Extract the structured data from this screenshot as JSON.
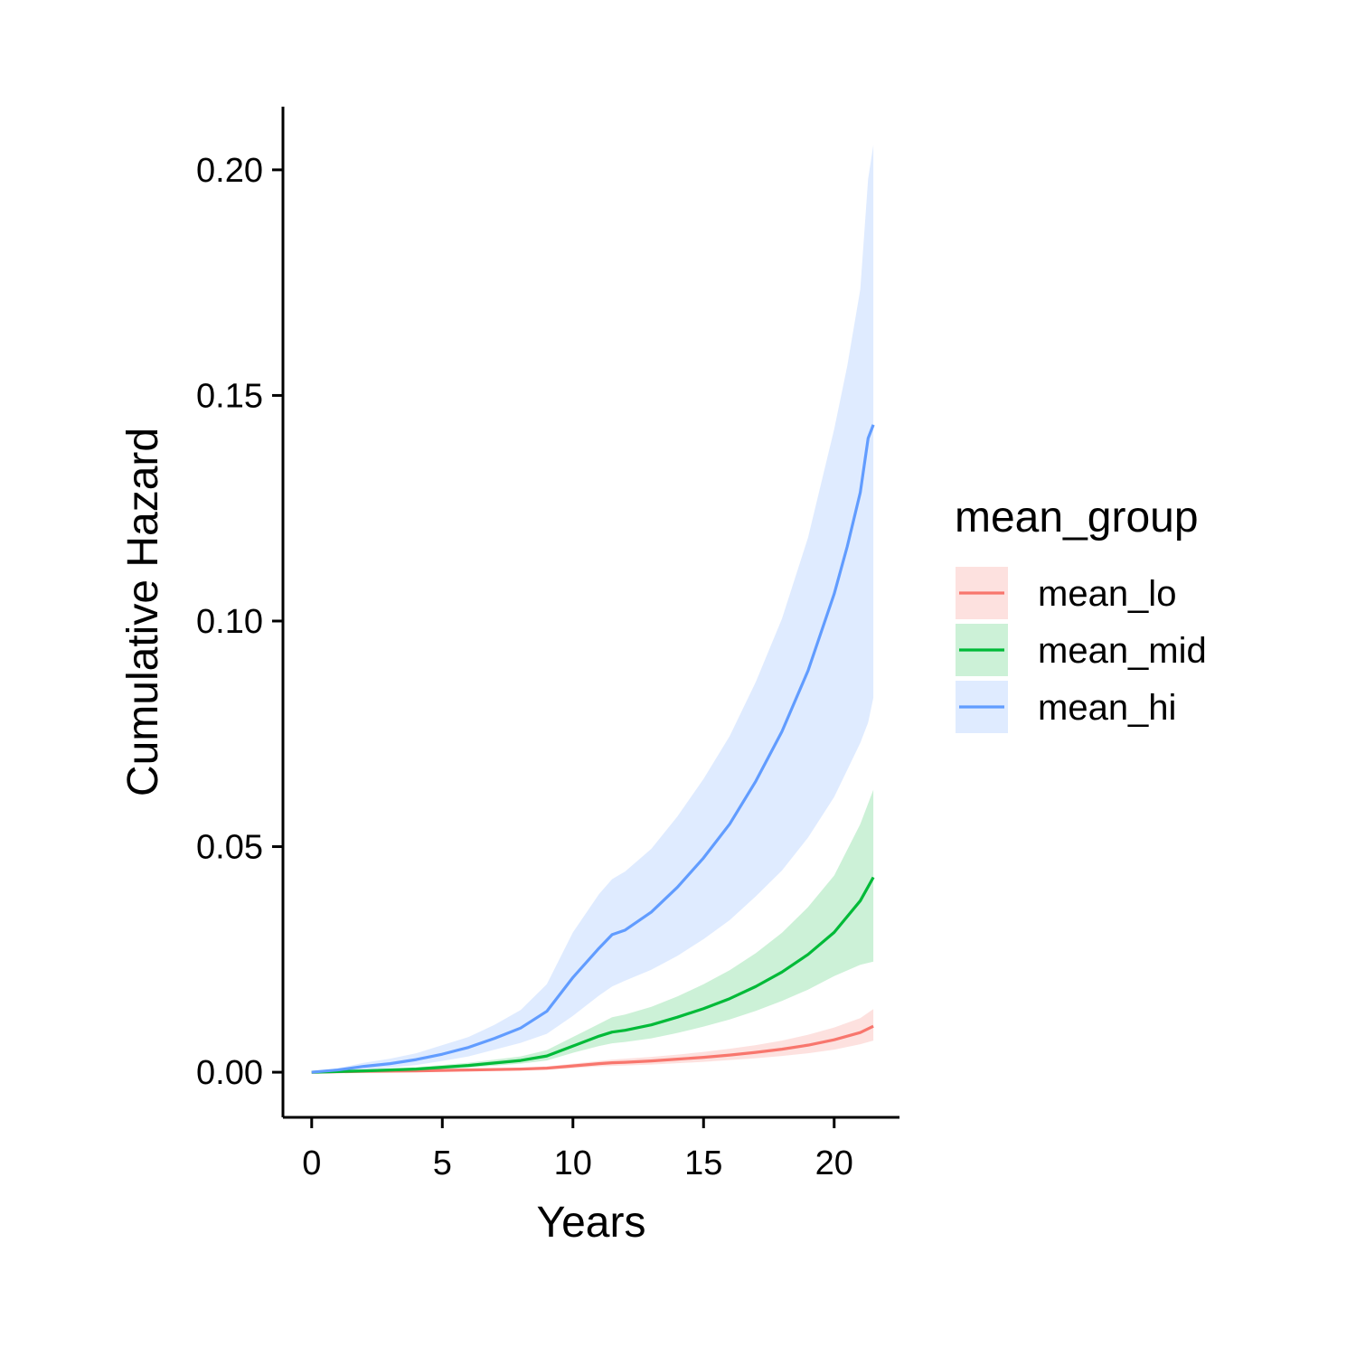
{
  "chart_data": {
    "type": "line",
    "xlabel": "Years",
    "ylabel": "Cumulative Hazard",
    "xlim": [
      -1.1,
      22.5
    ],
    "ylim": [
      -0.01,
      0.214
    ],
    "x_ticks": [
      0,
      5,
      10,
      15,
      20
    ],
    "x_tick_labels": [
      "0",
      "5",
      "10",
      "15",
      "20"
    ],
    "y_ticks": [
      0.0,
      0.05,
      0.1,
      0.15,
      0.2
    ],
    "y_tick_labels": [
      "0.00",
      "0.05",
      "0.10",
      "0.15",
      "0.20"
    ],
    "grid": false,
    "legend": {
      "title": "mean_group",
      "position": "right"
    },
    "series": [
      {
        "name": "mean_lo",
        "color": "#F8766D",
        "x": [
          0,
          2,
          4,
          6,
          8,
          9,
          10,
          11,
          11.5,
          12,
          13,
          14,
          15,
          16,
          17,
          18,
          19,
          20,
          21,
          21.5
        ],
        "y": [
          0,
          0.0002,
          0.0003,
          0.0005,
          0.0007,
          0.0009,
          0.0014,
          0.0019,
          0.0021,
          0.0022,
          0.0025,
          0.0029,
          0.0033,
          0.0038,
          0.0044,
          0.0051,
          0.006,
          0.0072,
          0.0088,
          0.0102
        ],
        "lower": [
          0,
          0.0001,
          0.0002,
          0.0003,
          0.0005,
          0.0006,
          0.0009,
          0.0013,
          0.0014,
          0.0015,
          0.0017,
          0.002,
          0.0023,
          0.0027,
          0.0031,
          0.0036,
          0.0042,
          0.005,
          0.0062,
          0.007
        ],
        "upper": [
          0,
          0.0004,
          0.0006,
          0.0008,
          0.001,
          0.0013,
          0.0019,
          0.0025,
          0.0028,
          0.003,
          0.0034,
          0.0039,
          0.0045,
          0.0052,
          0.006,
          0.007,
          0.0083,
          0.0099,
          0.012,
          0.014
        ]
      },
      {
        "name": "mean_mid",
        "color": "#00BA38",
        "x": [
          0,
          2,
          4,
          6,
          8,
          9,
          10,
          11,
          11.5,
          12,
          13,
          14,
          15,
          16,
          17,
          18,
          19,
          20,
          21,
          21.5
        ],
        "y": [
          0,
          0.0003,
          0.0007,
          0.0015,
          0.0026,
          0.0036,
          0.0058,
          0.008,
          0.0089,
          0.0093,
          0.0105,
          0.0122,
          0.0141,
          0.0163,
          0.019,
          0.0222,
          0.0261,
          0.031,
          0.038,
          0.0432
        ],
        "lower": [
          0,
          0.0001,
          0.0004,
          0.001,
          0.0019,
          0.0026,
          0.0043,
          0.0058,
          0.0064,
          0.0067,
          0.0075,
          0.0087,
          0.0101,
          0.0117,
          0.0136,
          0.0158,
          0.0183,
          0.0213,
          0.0238,
          0.0245
        ],
        "upper": [
          0,
          0.0006,
          0.0011,
          0.0021,
          0.0035,
          0.0049,
          0.0078,
          0.0107,
          0.0122,
          0.0128,
          0.0145,
          0.0168,
          0.0195,
          0.0226,
          0.0264,
          0.0309,
          0.0366,
          0.0436,
          0.055,
          0.0626
        ]
      },
      {
        "name": "mean_hi",
        "color": "#619CFF",
        "x": [
          0,
          1,
          2,
          3,
          4,
          5,
          6,
          7,
          8,
          9,
          10,
          11,
          11.5,
          12,
          13,
          14,
          15,
          16,
          17,
          18,
          19,
          20,
          20.5,
          21,
          21.3,
          21.5
        ],
        "y": [
          0,
          0.0005,
          0.0013,
          0.0019,
          0.0028,
          0.004,
          0.0055,
          0.0075,
          0.0098,
          0.0135,
          0.021,
          0.0275,
          0.0305,
          0.0315,
          0.0355,
          0.041,
          0.0475,
          0.055,
          0.0645,
          0.0755,
          0.089,
          0.106,
          0.1165,
          0.1285,
          0.1405,
          0.1435
        ],
        "lower": [
          0,
          0.0002,
          0.0006,
          0.001,
          0.0016,
          0.0025,
          0.0035,
          0.005,
          0.0065,
          0.0085,
          0.0125,
          0.017,
          0.019,
          0.0203,
          0.0227,
          0.0258,
          0.0295,
          0.0337,
          0.039,
          0.0447,
          0.052,
          0.061,
          0.067,
          0.073,
          0.0775,
          0.083
        ],
        "upper": [
          0,
          0.0009,
          0.0021,
          0.003,
          0.0042,
          0.006,
          0.0078,
          0.0105,
          0.0138,
          0.0195,
          0.031,
          0.0395,
          0.0428,
          0.0445,
          0.0495,
          0.0567,
          0.065,
          0.0745,
          0.0865,
          0.1005,
          0.1185,
          0.1425,
          0.1565,
          0.1735,
          0.198,
          0.2055
        ]
      }
    ]
  }
}
